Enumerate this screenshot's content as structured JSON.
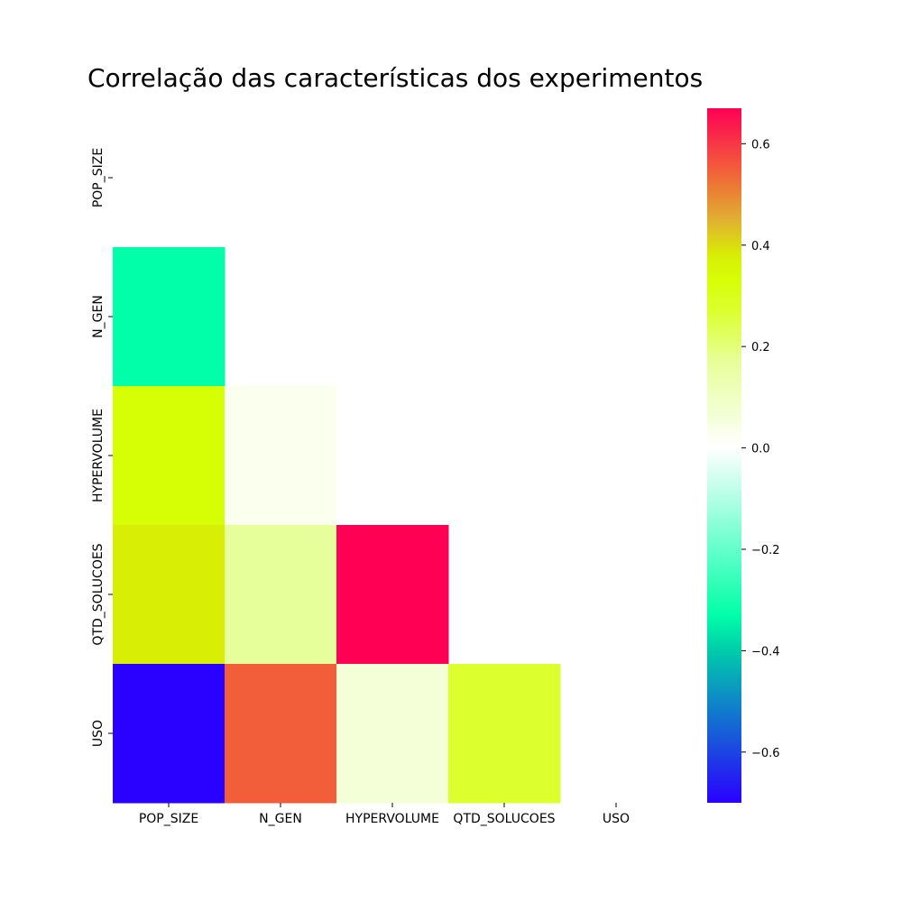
{
  "chart_data": {
    "type": "heatmap",
    "title": "Correlação das características dos experimentos",
    "variables": [
      "POP_SIZE",
      "N_GEN",
      "HYPERVOLUME",
      "QTD_SOLUCOES",
      "USO"
    ],
    "mask": "upper-triangle-including-diagonal",
    "cells": [
      {
        "row": "N_GEN",
        "col": "POP_SIZE",
        "value": -0.33
      },
      {
        "row": "HYPERVOLUME",
        "col": "POP_SIZE",
        "value": 0.33
      },
      {
        "row": "HYPERVOLUME",
        "col": "N_GEN",
        "value": 0.03
      },
      {
        "row": "QTD_SOLUCOES",
        "col": "POP_SIZE",
        "value": 0.38
      },
      {
        "row": "QTD_SOLUCOES",
        "col": "N_GEN",
        "value": 0.17
      },
      {
        "row": "QTD_SOLUCOES",
        "col": "HYPERVOLUME",
        "value": 0.67
      },
      {
        "row": "USO",
        "col": "POP_SIZE",
        "value": -0.7
      },
      {
        "row": "USO",
        "col": "N_GEN",
        "value": 0.55
      },
      {
        "row": "USO",
        "col": "HYPERVOLUME",
        "value": 0.06
      },
      {
        "row": "USO",
        "col": "QTD_SOLUCOES",
        "value": 0.27
      }
    ],
    "colormap": "gist_rainbow_r",
    "colorbar": {
      "range": [
        -0.7,
        0.67
      ],
      "ticks": [
        -0.6,
        -0.4,
        -0.2,
        0.0,
        0.2,
        0.4,
        0.6
      ],
      "tick_labels": [
        "−0.6",
        "−0.4",
        "−0.2",
        "0.0",
        "0.2",
        "0.4",
        "0.6"
      ],
      "placement": "right"
    },
    "colormap_stops": [
      {
        "value": -0.7,
        "color": "#2a00ff"
      },
      {
        "value": -0.4,
        "color": "#00ccaa"
      },
      {
        "value": -0.33,
        "color": "#00ffa8"
      },
      {
        "value": 0.0,
        "color": "#ffffff"
      },
      {
        "value": 0.03,
        "color": "#fbffee"
      },
      {
        "value": 0.06,
        "color": "#f4ffd8"
      },
      {
        "value": 0.17,
        "color": "#e7ff9a"
      },
      {
        "value": 0.27,
        "color": "#dcff2e"
      },
      {
        "value": 0.33,
        "color": "#d6ff05"
      },
      {
        "value": 0.38,
        "color": "#d8ee05"
      },
      {
        "value": 0.45,
        "color": "#e0b030"
      },
      {
        "value": 0.55,
        "color": "#f25d3a"
      },
      {
        "value": 0.67,
        "color": "#ff0055"
      }
    ]
  }
}
